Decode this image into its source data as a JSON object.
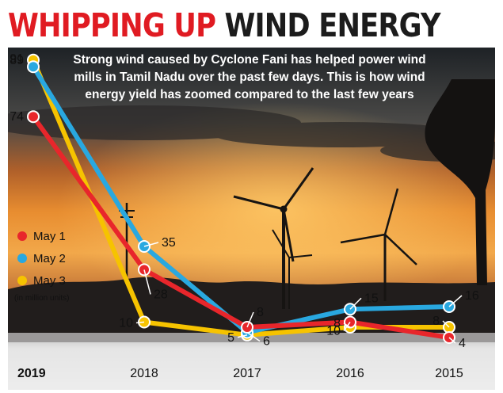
{
  "headline": {
    "part1": "WHIPPING UP",
    "part2": "WIND ENERGY"
  },
  "chart_data": {
    "type": "line",
    "title": "WHIPPING UP WIND ENERGY",
    "subtitle": "Strong wind caused by Cyclone Fani has helped power wind mills in Tamil Nadu over the past few days. This is how wind energy yield has zoomed compared to the last few years",
    "subtitle_lines": [
      "Strong wind caused by Cyclone Fani has helped power wind",
      "mills in Tamil Nadu over the past few days. This is how wind",
      "energy yield has zoomed compared to the last few years"
    ],
    "unit_note": "(in million units)",
    "categories": [
      "2019",
      "2018",
      "2017",
      "2016",
      "2015"
    ],
    "series": [
      {
        "name": "May 1",
        "color": "#e8262b",
        "values": [
          74,
          28,
          8,
          10,
          4
        ]
      },
      {
        "name": "May 2",
        "color": "#29a8e0",
        "values": [
          89,
          35,
          6,
          15,
          16
        ]
      },
      {
        "name": "May 3",
        "color": "#f6c300",
        "values": [
          91,
          10,
          5,
          8,
          8
        ]
      }
    ],
    "legend_position": "left",
    "ylim": [
      0,
      100
    ],
    "grid": false
  }
}
